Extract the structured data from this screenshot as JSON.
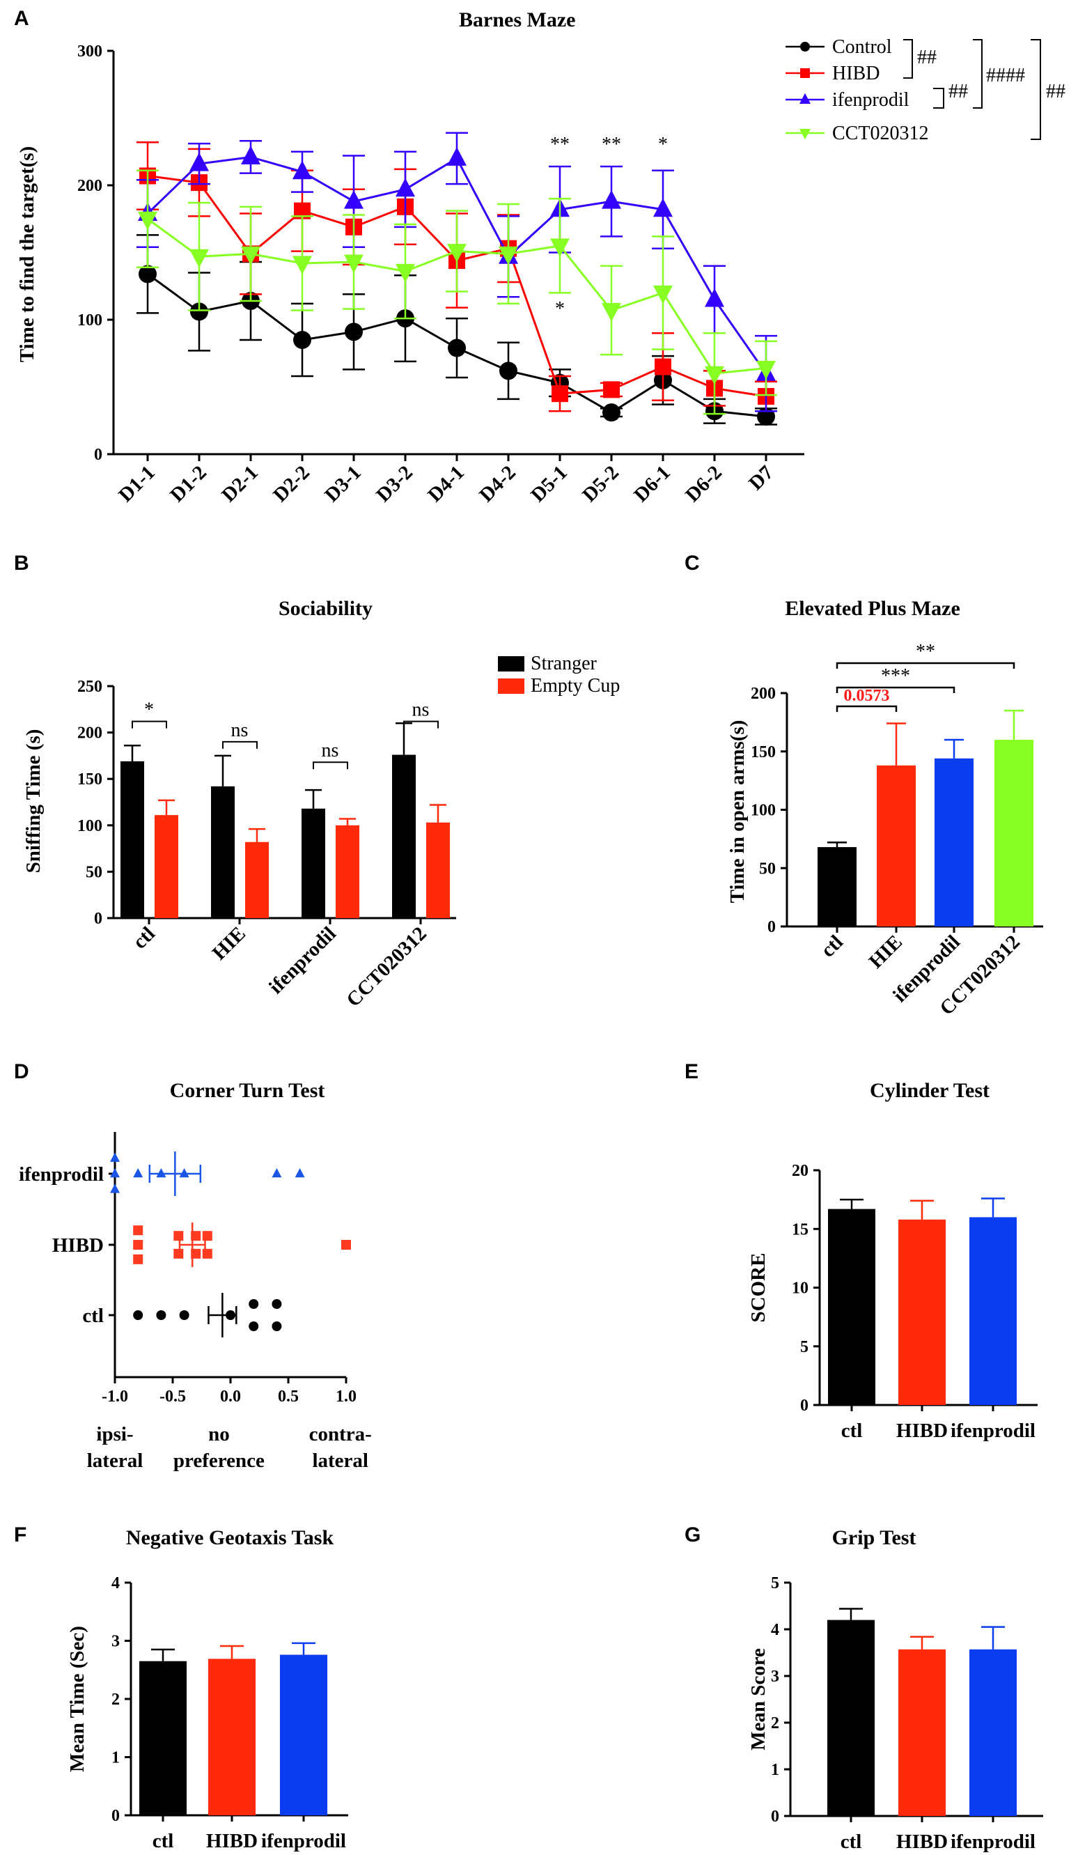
{
  "chart_data": [
    {
      "panel": "A",
      "type": "line",
      "title": "Barnes Maze",
      "ylabel": "Time to find the target(s)",
      "xlabel": "",
      "ylim": [
        0,
        300
      ],
      "yticks": [
        0,
        100,
        200,
        300
      ],
      "categories": [
        "D1-1",
        "D1-2",
        "D2-1",
        "D2-2",
        "D3-1",
        "D3-2",
        "D4-1",
        "D4-2",
        "D5-1",
        "D5-2",
        "D6-1",
        "D6-2",
        "D7"
      ],
      "series": [
        {
          "name": "Control",
          "color": "#000000",
          "marker": "circle",
          "values": [
            134,
            106,
            114,
            85,
            91,
            101,
            79,
            62,
            53,
            31,
            55,
            32,
            28
          ],
          "errors": [
            29,
            29,
            29,
            27,
            28,
            32,
            22,
            21,
            10,
            3,
            18,
            9,
            6
          ]
        },
        {
          "name": "HIBD",
          "color": "#ff0000",
          "marker": "square",
          "values": [
            207,
            202,
            149,
            181,
            169,
            184,
            144,
            153,
            45,
            48,
            65,
            49,
            43
          ],
          "errors": [
            25,
            25,
            30,
            30,
            28,
            28,
            35,
            25,
            13,
            5,
            25,
            13,
            11
          ]
        },
        {
          "name": "ifenprodil",
          "color": "#3300ff",
          "marker": "triangle-up",
          "values": [
            179,
            216,
            221,
            210,
            188,
            197,
            220,
            147,
            182,
            188,
            182,
            115,
            60
          ],
          "errors": [
            25,
            15,
            12,
            15,
            34,
            28,
            19,
            30,
            32,
            26,
            29,
            25,
            28
          ]
        },
        {
          "name": "CCT020312",
          "color": "#88ff22",
          "marker": "triangle-down",
          "values": [
            175,
            147,
            149,
            142,
            143,
            136,
            151,
            149,
            155,
            107,
            120,
            60,
            64
          ],
          "errors": [
            36,
            40,
            35,
            35,
            35,
            35,
            30,
            37,
            35,
            33,
            42,
            30,
            20
          ]
        }
      ],
      "significance": {
        "above": [
          {
            "category": "D5-1",
            "text": "**"
          },
          {
            "category": "D5-2",
            "text": "**"
          },
          {
            "category": "D6-1",
            "text": "*"
          }
        ],
        "below": [
          {
            "category": "D5-1",
            "text": "*"
          }
        ],
        "legend_brackets": [
          "##",
          "##",
          "####",
          "##"
        ]
      }
    },
    {
      "panel": "B",
      "type": "bar",
      "title": "Sociability",
      "ylabel": "Sniffing Time (s)",
      "ylim": [
        0,
        250
      ],
      "yticks": [
        0,
        50,
        100,
        150,
        200,
        250
      ],
      "categories": [
        "ctl",
        "HIE",
        "ifenprodil",
        "CCT020312"
      ],
      "series": [
        {
          "name": "Stranger",
          "color": "#000000",
          "values": [
            169,
            142,
            118,
            176
          ],
          "errors": [
            17,
            33,
            20,
            34
          ]
        },
        {
          "name": "Empty Cup",
          "color": "#ff2a0a",
          "values": [
            111,
            82,
            100,
            103
          ],
          "errors": [
            16,
            14,
            7,
            19
          ]
        }
      ],
      "significance": [
        "*",
        "ns",
        "ns",
        "ns"
      ]
    },
    {
      "panel": "C",
      "type": "bar",
      "title": "Elevated Plus Maze",
      "ylabel": "Time in open arms(s)",
      "ylim": [
        0,
        200
      ],
      "yticks": [
        0,
        50,
        100,
        150,
        200
      ],
      "categories": [
        "ctl",
        "HIE",
        "ifenprodil",
        "CCT020312"
      ],
      "colors": [
        "#000000",
        "#ff2a0a",
        "#0a3cf0",
        "#88ff22"
      ],
      "values": [
        68,
        138,
        144,
        160
      ],
      "errors": [
        4,
        36,
        16,
        25
      ],
      "significance": [
        {
          "from": "ctl",
          "to": "HIE",
          "text": "0.0573",
          "color": "#ff1a1a"
        },
        {
          "from": "ctl",
          "to": "ifenprodil",
          "text": "***"
        },
        {
          "from": "ctl",
          "to": "CCT020312",
          "text": "**"
        }
      ]
    },
    {
      "panel": "D",
      "type": "scatter",
      "title": "Corner Turn Test",
      "xlim": [
        -1.0,
        1.0
      ],
      "xticks": [
        -1.0,
        -0.5,
        0.0,
        0.5,
        1.0
      ],
      "xtick_labels": [
        "-1.0",
        "-0.5",
        "0.0",
        "0.5",
        "1.0"
      ],
      "x_annotations": [
        {
          "x": -1.0,
          "lines": [
            "ipsi-",
            "lateral"
          ]
        },
        {
          "x": -0.1,
          "lines": [
            "no",
            "preference"
          ]
        },
        {
          "x": 0.95,
          "lines": [
            "contra-",
            "lateral"
          ]
        }
      ],
      "groups": [
        {
          "name": "ifenprodil",
          "color": "#1a55e6",
          "marker": "triangle-up",
          "points": [
            [
              -1.0,
              0.14
            ],
            [
              -1.0,
              0
            ],
            [
              -1.0,
              -0.14
            ],
            [
              -0.8,
              0
            ],
            [
              -0.6,
              0
            ],
            [
              -0.4,
              0
            ],
            [
              0.4,
              0
            ],
            [
              0.6,
              0
            ]
          ],
          "mean": -0.48,
          "sem": 0.22
        },
        {
          "name": "HIBD",
          "color": "#ff3a20",
          "marker": "square",
          "points": [
            [
              -0.8,
              0.13
            ],
            [
              -0.8,
              0
            ],
            [
              -0.8,
              -0.13
            ],
            [
              -0.45,
              0.08
            ],
            [
              -0.45,
              -0.08
            ],
            [
              -0.3,
              0.08
            ],
            [
              -0.3,
              -0.08
            ],
            [
              -0.2,
              0.08
            ],
            [
              -0.2,
              -0.08
            ],
            [
              1.0,
              0
            ]
          ],
          "mean": -0.33,
          "sem": 0.11
        },
        {
          "name": "ctl",
          "color": "#000000",
          "marker": "circle",
          "points": [
            [
              -0.8,
              0
            ],
            [
              -0.6,
              0
            ],
            [
              -0.4,
              0
            ],
            [
              0.0,
              0
            ],
            [
              0.2,
              0.1
            ],
            [
              0.2,
              -0.1
            ],
            [
              0.4,
              0.1
            ],
            [
              0.4,
              -0.1
            ]
          ],
          "mean": -0.07,
          "sem": 0.12
        }
      ]
    },
    {
      "panel": "E",
      "type": "bar",
      "title": "Cylinder Test",
      "ylabel": "SCORE",
      "ylim": [
        0,
        20
      ],
      "yticks": [
        0,
        5,
        10,
        15,
        20
      ],
      "categories": [
        "ctl",
        "HIBD",
        "ifenprodil"
      ],
      "colors": [
        "#000000",
        "#ff2a0a",
        "#0a3cf0"
      ],
      "values": [
        16.7,
        15.8,
        16.0
      ],
      "errors": [
        0.8,
        1.6,
        1.6
      ]
    },
    {
      "panel": "F",
      "type": "bar",
      "title": "Negative Geotaxis Task",
      "ylabel": "Mean Time (Sec)",
      "ylim": [
        0,
        4
      ],
      "yticks": [
        0,
        1,
        2,
        3,
        4
      ],
      "categories": [
        "ctl",
        "HIBD",
        "ifenprodil"
      ],
      "colors": [
        "#000000",
        "#ff2a0a",
        "#0a3cf0"
      ],
      "values": [
        2.65,
        2.69,
        2.76
      ],
      "errors": [
        0.2,
        0.22,
        0.2
      ]
    },
    {
      "panel": "G",
      "type": "bar",
      "title": "Grip Test",
      "ylabel": "Mean Score",
      "ylim": [
        0,
        5
      ],
      "yticks": [
        0,
        1,
        2,
        3,
        4,
        5
      ],
      "categories": [
        "ctl",
        "HIBD",
        "ifenprodil"
      ],
      "colors": [
        "#000000",
        "#ff2a0a",
        "#0a3cf0"
      ],
      "values": [
        4.2,
        3.57,
        3.57
      ],
      "errors": [
        0.24,
        0.27,
        0.48
      ]
    }
  ]
}
